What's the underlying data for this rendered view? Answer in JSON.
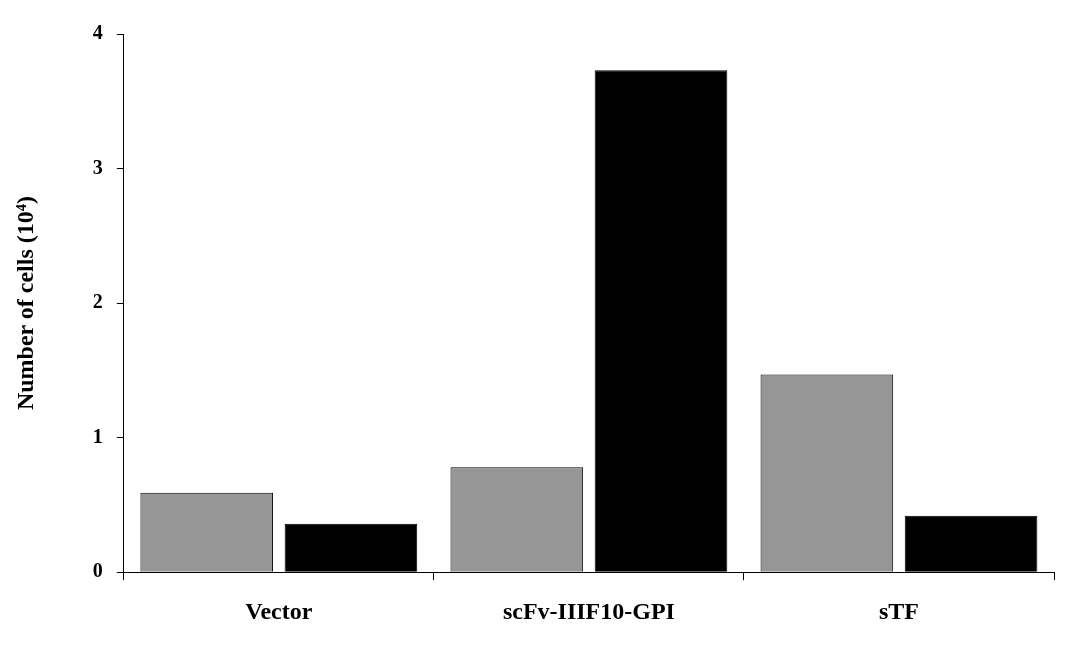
{
  "chart_data": {
    "type": "bar",
    "ylabel": "Number of cells (10⁴)",
    "categories": [
      "Vector",
      "scFv-IIIF10-GPI",
      "sTF"
    ],
    "series": [
      {
        "color": "#969696",
        "values": [
          0.59,
          0.78,
          1.47
        ]
      },
      {
        "color": "#000000",
        "values": [
          0.36,
          3.73,
          0.42
        ]
      }
    ],
    "ylim": [
      0,
      4
    ],
    "yticks": [
      0,
      1,
      2,
      3,
      4
    ],
    "grid": false,
    "legend": false
  }
}
